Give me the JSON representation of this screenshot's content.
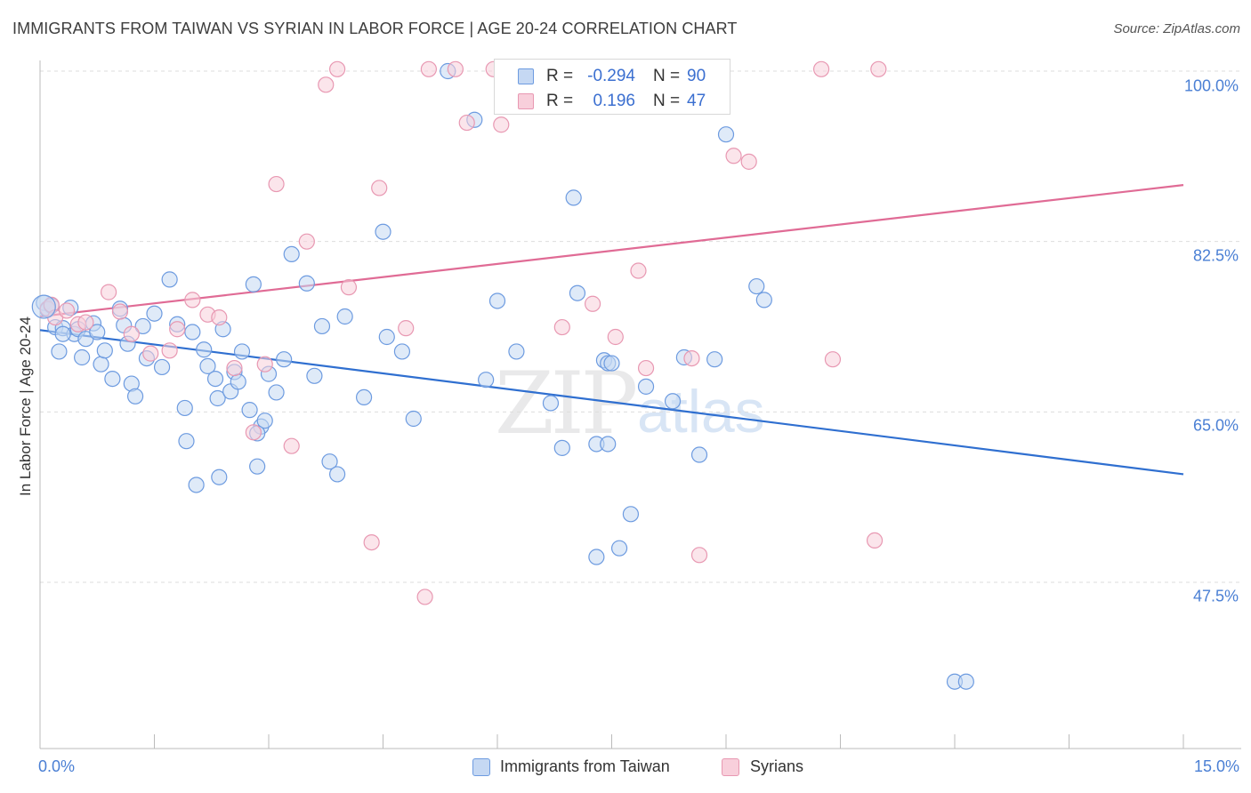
{
  "title": "IMMIGRANTS FROM TAIWAN VS SYRIAN IN LABOR FORCE | AGE 20-24 CORRELATION CHART",
  "source": "Source: ZipAtlas.com",
  "watermark": {
    "zip": "ZIP",
    "atlas": "atlas"
  },
  "colors": {
    "taiwan_fill": "#c5d8f3",
    "taiwan_stroke": "#6d9be0",
    "taiwan_line": "#2f6fd0",
    "syria_fill": "#f8cfdb",
    "syria_stroke": "#e898b2",
    "syria_line": "#e06b95",
    "axis_text": "#4a7fd4",
    "grid": "#dddddd"
  },
  "legend": {
    "rows": [
      {
        "r_label": "R =",
        "r_value": "-0.294",
        "n_label": "N =",
        "n_value": "90"
      },
      {
        "r_label": "R =",
        "r_value": "0.196",
        "n_label": "N =",
        "n_value": "47"
      }
    ]
  },
  "bottom_legend": [
    "Immigrants from Taiwan",
    "Syrians"
  ],
  "chart_data": {
    "type": "scatter",
    "title": "IMMIGRANTS FROM TAIWAN VS SYRIAN IN LABOR FORCE | AGE 20-24 CORRELATION CHART",
    "xlabel": "",
    "ylabel": "In Labor Force | Age 20-24",
    "xlim": [
      0,
      15
    ],
    "ylim": [
      31.5,
      102
    ],
    "x_tick_labels": [
      "0.0%",
      "15.0%"
    ],
    "y_ticks": [
      47.5,
      65.0,
      82.5,
      100.0
    ],
    "y_tick_labels": [
      "47.5%",
      "65.0%",
      "82.5%",
      "100.0%"
    ],
    "grid": "horizontal dashed",
    "legend_position": "top-center",
    "series": [
      {
        "name": "Immigrants from Taiwan",
        "R": -0.294,
        "N": 90,
        "trend": [
          [
            0,
            73.4
          ],
          [
            15,
            58.6
          ]
        ],
        "points": [
          [
            0.05,
            76.2
          ],
          [
            0.1,
            75.5
          ],
          [
            0.15,
            75.9
          ],
          [
            0.2,
            73.7
          ],
          [
            0.25,
            71.2
          ],
          [
            0.3,
            73.6
          ],
          [
            0.4,
            75.7
          ],
          [
            0.45,
            73
          ],
          [
            0.5,
            73.5
          ],
          [
            0.55,
            70.6
          ],
          [
            0.6,
            72.5
          ],
          [
            0.7,
            74.1
          ],
          [
            0.75,
            73.2
          ],
          [
            0.8,
            69.9
          ],
          [
            0.85,
            71.3
          ],
          [
            0.95,
            68.4
          ],
          [
            1.05,
            75.6
          ],
          [
            1.1,
            73.9
          ],
          [
            1.15,
            72
          ],
          [
            1.2,
            67.9
          ],
          [
            1.25,
            66.6
          ],
          [
            1.4,
            70.5
          ],
          [
            1.5,
            75.1
          ],
          [
            1.6,
            69.6
          ],
          [
            1.7,
            78.6
          ],
          [
            1.8,
            74
          ],
          [
            1.9,
            65.4
          ],
          [
            1.92,
            62
          ],
          [
            2.0,
            73.2
          ],
          [
            2.05,
            57.5
          ],
          [
            2.15,
            71.4
          ],
          [
            2.2,
            69.7
          ],
          [
            2.3,
            68.4
          ],
          [
            2.33,
            66.4
          ],
          [
            2.35,
            58.3
          ],
          [
            2.4,
            73.5
          ],
          [
            2.5,
            67.1
          ],
          [
            2.55,
            69.1
          ],
          [
            2.6,
            68.1
          ],
          [
            2.65,
            71.2
          ],
          [
            2.75,
            65.2
          ],
          [
            2.8,
            78.1
          ],
          [
            2.85,
            59.4
          ],
          [
            2.9,
            63.5
          ],
          [
            2.95,
            64.1
          ],
          [
            3.0,
            68.9
          ],
          [
            3.1,
            67
          ],
          [
            3.2,
            70.4
          ],
          [
            3.3,
            81.2
          ],
          [
            3.5,
            78.2
          ],
          [
            3.6,
            68.7
          ],
          [
            3.7,
            73.8
          ],
          [
            3.8,
            59.9
          ],
          [
            3.9,
            58.6
          ],
          [
            4.0,
            74.8
          ],
          [
            4.25,
            66.5
          ],
          [
            4.5,
            83.5
          ],
          [
            4.55,
            72.7
          ],
          [
            4.75,
            71.2
          ],
          [
            4.9,
            64.3
          ],
          [
            5.35,
            100
          ],
          [
            5.7,
            95
          ],
          [
            5.85,
            68.3
          ],
          [
            6.0,
            76.4
          ],
          [
            6.25,
            71.2
          ],
          [
            6.7,
            65.9
          ],
          [
            6.85,
            61.3
          ],
          [
            7.0,
            87
          ],
          [
            7.05,
            77.2
          ],
          [
            7.3,
            61.7
          ],
          [
            7.3,
            50.1
          ],
          [
            7.45,
            61.7
          ],
          [
            7.4,
            70.3
          ],
          [
            7.45,
            70
          ],
          [
            7.5,
            70
          ],
          [
            7.6,
            51
          ],
          [
            7.75,
            54.5
          ],
          [
            7.95,
            67.6
          ],
          [
            8.3,
            66.1
          ],
          [
            8.45,
            70.6
          ],
          [
            8.65,
            60.6
          ],
          [
            8.85,
            70.4
          ],
          [
            9.0,
            93.5
          ],
          [
            9.4,
            77.9
          ],
          [
            9.5,
            76.5
          ],
          [
            12.0,
            37.3
          ],
          [
            12.15,
            37.3
          ],
          [
            0.3,
            73
          ],
          [
            1.35,
            73.8
          ],
          [
            2.85,
            62.8
          ]
        ]
      },
      {
        "name": "Syrians",
        "R": 0.196,
        "N": 47,
        "trend": [
          [
            0,
            74.8
          ],
          [
            15,
            88.3
          ]
        ],
        "points": [
          [
            0.1,
            75.6
          ],
          [
            0.15,
            76
          ],
          [
            0.2,
            74.7
          ],
          [
            0.35,
            75.4
          ],
          [
            0.5,
            74
          ],
          [
            0.6,
            74.2
          ],
          [
            0.9,
            77.3
          ],
          [
            1.05,
            75.3
          ],
          [
            1.2,
            73
          ],
          [
            1.45,
            71
          ],
          [
            1.7,
            71.3
          ],
          [
            1.8,
            73.5
          ],
          [
            2.0,
            76.5
          ],
          [
            2.2,
            75
          ],
          [
            2.35,
            74.7
          ],
          [
            2.55,
            69.5
          ],
          [
            2.8,
            62.9
          ],
          [
            2.95,
            69.9
          ],
          [
            3.1,
            88.4
          ],
          [
            3.3,
            61.5
          ],
          [
            3.5,
            82.5
          ],
          [
            3.75,
            98.6
          ],
          [
            3.9,
            100.2
          ],
          [
            4.05,
            77.8
          ],
          [
            4.35,
            51.6
          ],
          [
            4.45,
            88
          ],
          [
            4.8,
            73.6
          ],
          [
            5.05,
            46
          ],
          [
            5.1,
            100.2
          ],
          [
            5.45,
            100.2
          ],
          [
            5.6,
            94.7
          ],
          [
            5.95,
            100.2
          ],
          [
            6.05,
            94.5
          ],
          [
            6.5,
            100.2
          ],
          [
            6.85,
            73.7
          ],
          [
            7.25,
            76.1
          ],
          [
            7.55,
            72.7
          ],
          [
            7.85,
            79.5
          ],
          [
            7.95,
            69.5
          ],
          [
            8.65,
            50.3
          ],
          [
            8.55,
            70.5
          ],
          [
            9.1,
            91.3
          ],
          [
            9.3,
            90.7
          ],
          [
            10.25,
            100.2
          ],
          [
            10.4,
            70.4
          ],
          [
            10.95,
            51.8
          ],
          [
            11.0,
            100.2
          ]
        ]
      }
    ]
  }
}
